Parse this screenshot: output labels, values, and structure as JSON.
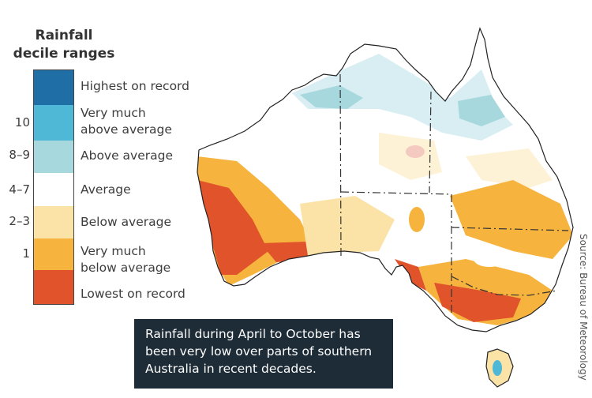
{
  "legend": {
    "title_line1": "Rainfall",
    "title_line2": "decile ranges",
    "categories": [
      {
        "label_line1": "Highest on record",
        "label_line2": "",
        "decile": "",
        "color": "#1f6fa6"
      },
      {
        "label_line1": "Very much",
        "label_line2": "above average",
        "decile": "10",
        "color": "#4fb8d6"
      },
      {
        "label_line1": "Above average",
        "label_line2": "",
        "decile": "8–9",
        "color": "#a6d8de"
      },
      {
        "label_line1": "Average",
        "label_line2": "",
        "decile": "4–7",
        "color": "#ffffff"
      },
      {
        "label_line1": "Below average",
        "label_line2": "",
        "decile": "2–3",
        "color": "#fbe3a8"
      },
      {
        "label_line1": "Very much",
        "label_line2": "below average",
        "decile": "1",
        "color": "#f6b33d"
      },
      {
        "label_line1": "Lowest on record",
        "label_line2": "",
        "decile": "",
        "color": "#e0532b"
      }
    ]
  },
  "caption": {
    "line1": "Rainfall during April to October has",
    "line2": "been very low over parts of southern",
    "line3": "Australia in recent decades."
  },
  "source": "Source: Bureau of Meteorology",
  "map": {
    "region": "Australia",
    "land_color": "#ffffff",
    "outline_color": "#222222"
  }
}
